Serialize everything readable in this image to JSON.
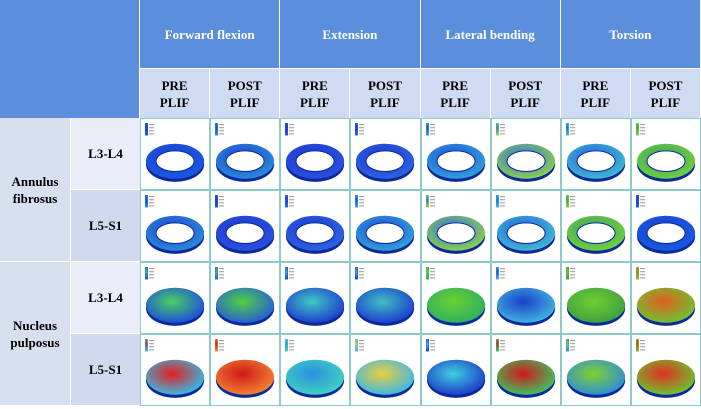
{
  "header": {
    "loads": [
      "Forward flexion",
      "Extension",
      "Lateral bending",
      "Torsion"
    ],
    "conditions": [
      "PRE PLIF",
      "POST PLIF",
      "PRE PLIF",
      "POST PLIF",
      "PRE PLIF",
      "POST PLIF",
      "PRE PLIF",
      "POST PLIF"
    ]
  },
  "groups": [
    {
      "label": "Annulus fibrosus",
      "levels": [
        "L3-L4",
        "L5-S1"
      ]
    },
    {
      "label": "Nucleus pulposus",
      "levels": [
        "L3-L4",
        "L5-S1"
      ]
    }
  ]
}
